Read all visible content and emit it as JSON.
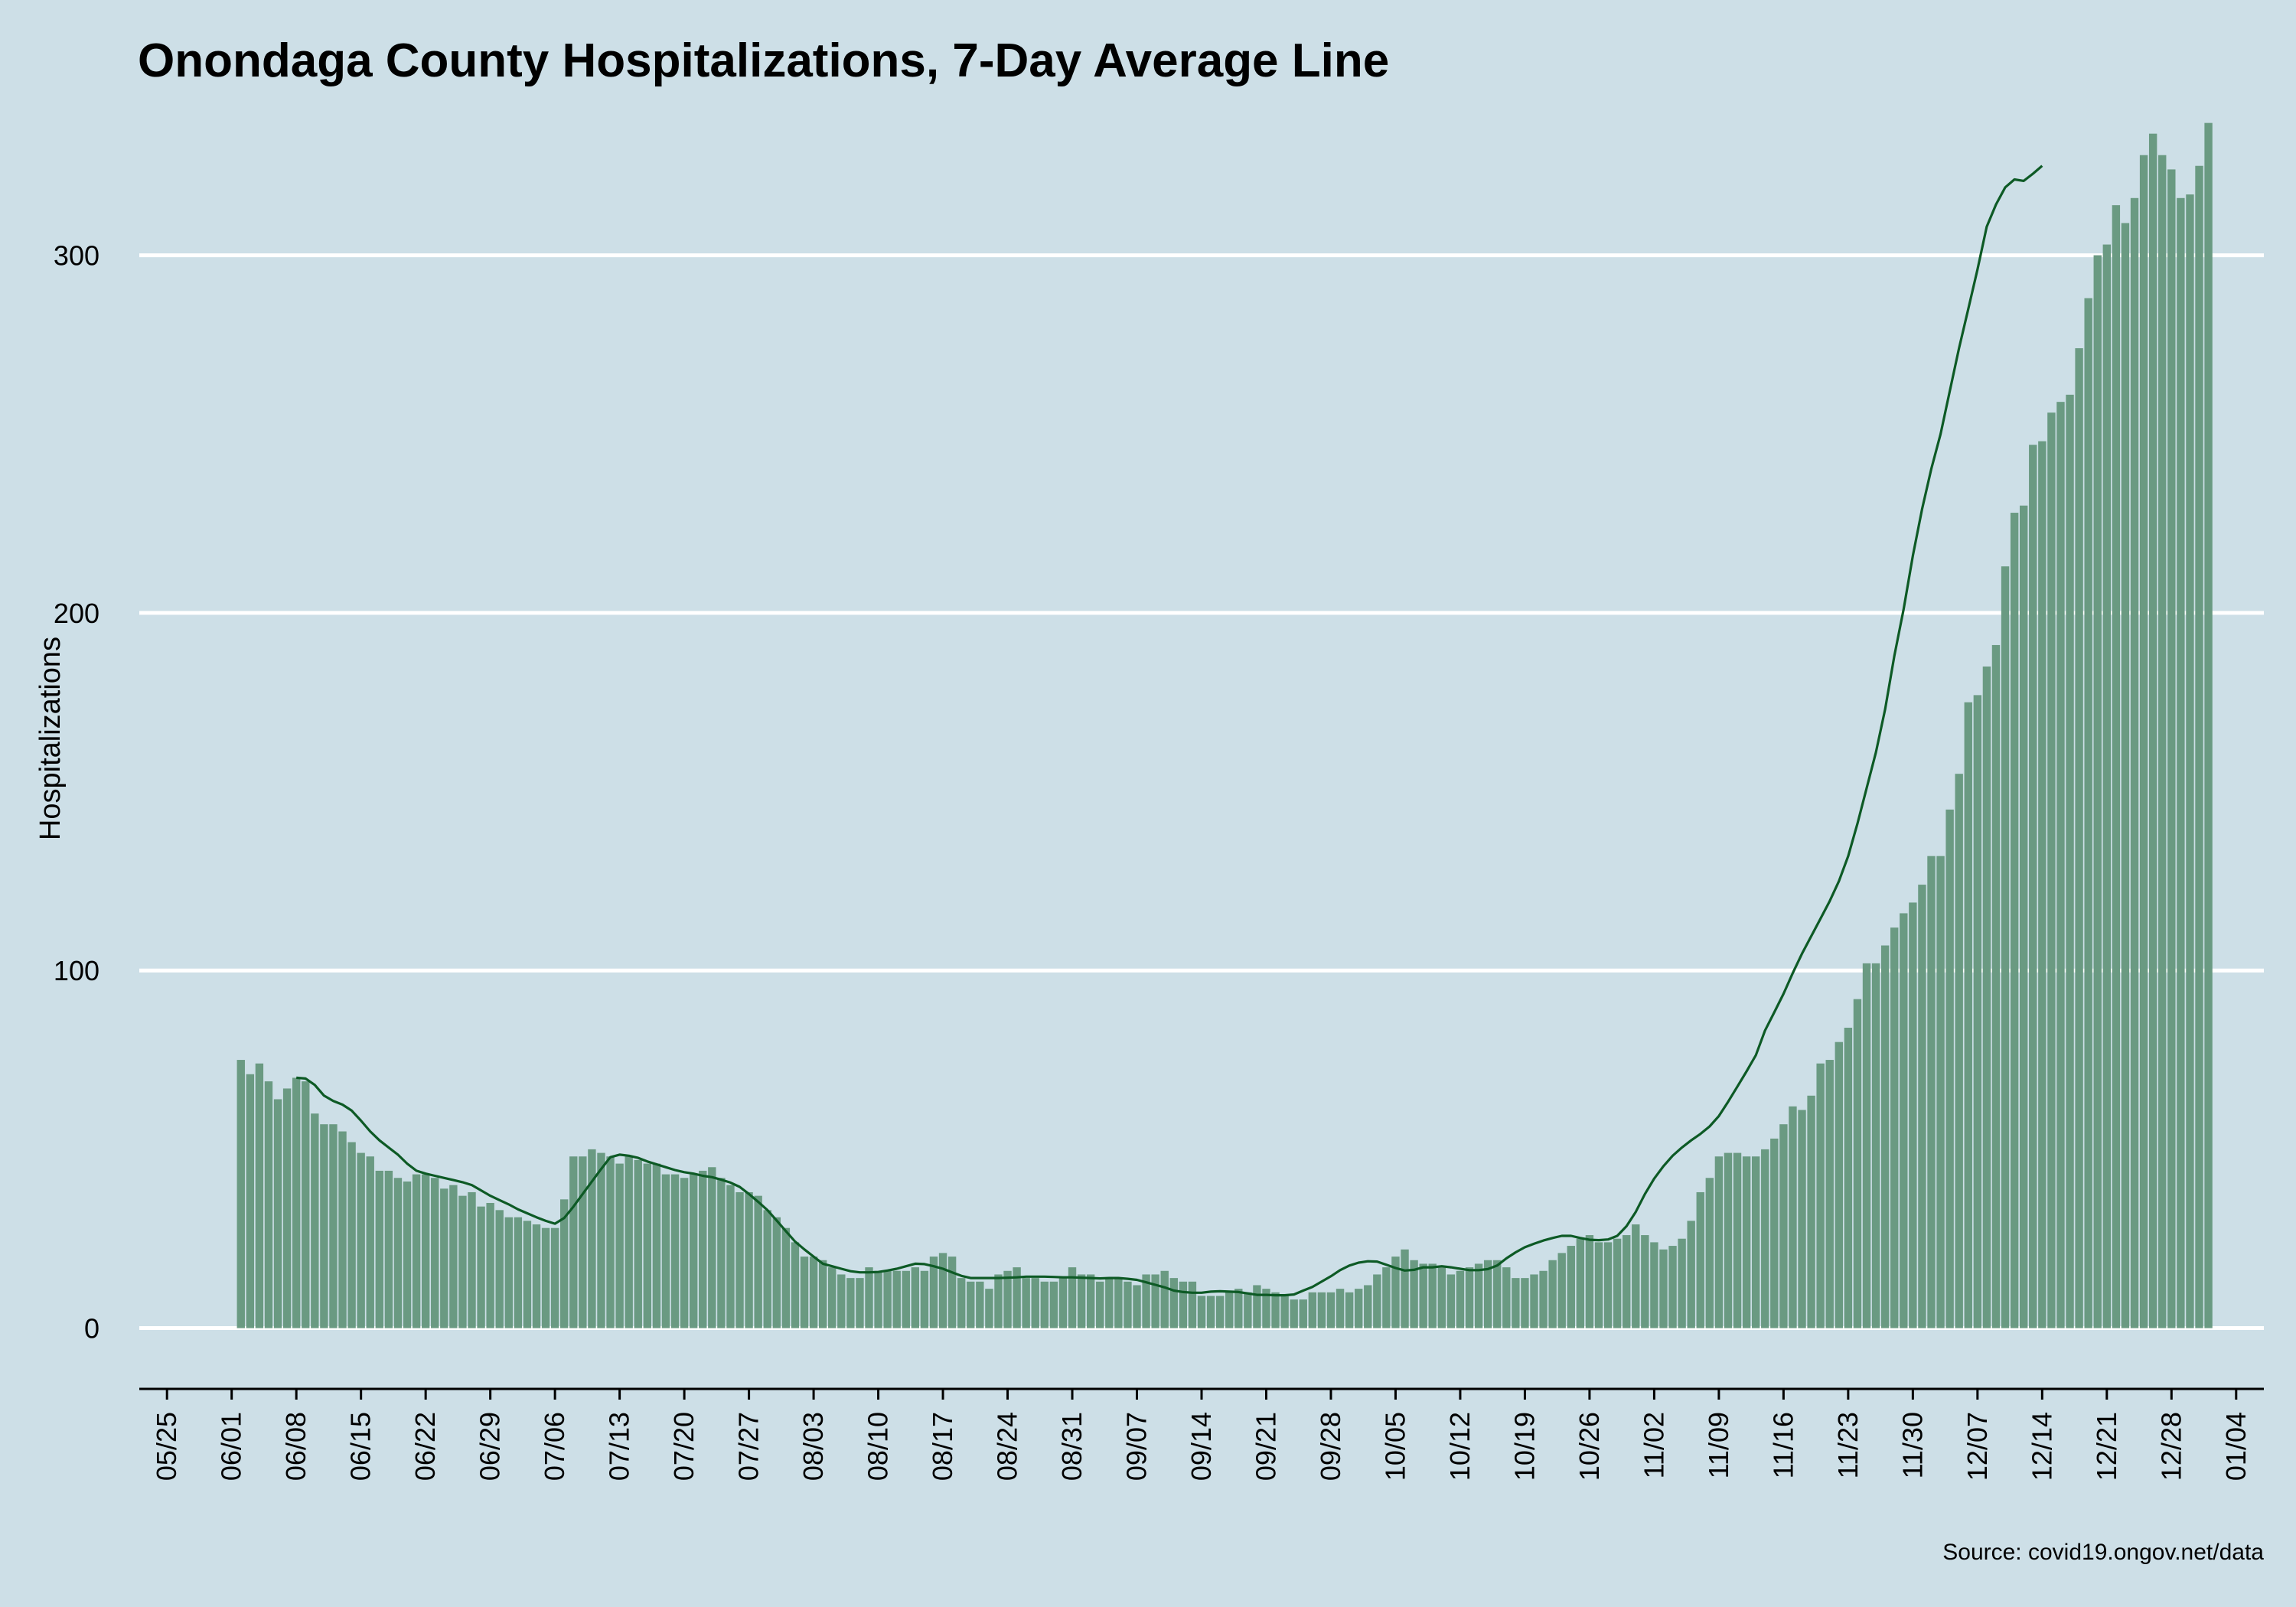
{
  "title": "Onondaga County Hospitalizations, 7-Day Average Line",
  "source": "Source: covid19.ongov.net/data",
  "colors": {
    "background": "#cddfe7",
    "bar": "#6a9a82",
    "line": "#0d5a25",
    "gridline": "#ffffff",
    "axis": "#000000"
  },
  "chart_data": {
    "type": "bar",
    "ylabel": "Hospitalizations",
    "xlabel": "",
    "ylim": [
      -17,
      335
    ],
    "yticks": [
      0,
      100,
      200,
      300
    ],
    "grid": "horizontal",
    "xlim": [
      "05/22",
      "01/07"
    ],
    "xticks": [
      "05/25",
      "06/01",
      "06/08",
      "06/15",
      "06/22",
      "06/29",
      "07/06",
      "07/13",
      "07/20",
      "07/27",
      "08/03",
      "08/10",
      "08/17",
      "08/24",
      "08/31",
      "09/07",
      "09/14",
      "09/21",
      "09/28",
      "10/05",
      "10/12",
      "10/19",
      "10/26",
      "11/02",
      "11/09",
      "11/16",
      "11/23",
      "11/30",
      "12/07",
      "12/14",
      "12/21",
      "12/28",
      "01/04"
    ],
    "x_start": "06/02",
    "x_end": "12/29",
    "values": [
      75,
      71,
      74,
      69,
      64,
      67,
      70,
      69,
      60,
      57,
      57,
      55,
      52,
      49,
      48,
      44,
      44,
      42,
      41,
      43,
      43,
      42,
      39,
      40,
      37,
      38,
      34,
      35,
      33,
      31,
      31,
      30,
      29,
      28,
      28,
      36,
      48,
      48,
      50,
      49,
      48,
      46,
      48,
      47,
      46,
      46,
      43,
      43,
      42,
      43,
      44,
      45,
      42,
      40,
      38,
      38,
      37,
      33,
      31,
      28,
      24,
      20,
      20,
      19,
      17,
      15,
      14,
      14,
      17,
      16,
      16,
      16,
      16,
      17,
      16,
      20,
      21,
      20,
      14,
      13,
      13,
      11,
      15,
      16,
      17,
      14,
      14,
      13,
      13,
      14,
      17,
      15,
      15,
      13,
      14,
      14,
      13,
      12,
      15,
      15,
      16,
      14,
      13,
      13,
      9,
      9,
      9,
      10,
      11,
      10,
      12,
      11,
      10,
      9,
      8,
      8,
      10,
      10,
      10,
      11,
      10,
      11,
      12,
      15,
      17,
      20,
      22,
      19,
      18,
      18,
      17,
      15,
      16,
      17,
      18,
      19,
      19,
      17,
      14,
      14,
      15,
      16,
      19,
      21,
      23,
      25,
      26,
      24,
      24,
      25,
      26,
      29,
      26,
      24,
      22,
      23,
      25,
      30,
      38,
      42,
      48,
      49,
      49,
      48,
      48,
      50,
      53,
      57,
      62,
      61,
      65,
      74,
      75,
      80,
      84,
      92,
      102,
      102,
      107,
      112,
      116,
      119,
      124,
      132,
      132,
      145,
      155,
      175,
      177,
      185,
      191,
      213,
      228,
      230,
      247,
      248,
      256,
      259,
      261,
      274,
      288,
      300,
      303,
      314,
      309,
      316,
      328,
      334,
      328,
      324,
      316,
      317,
      325,
      337
    ],
    "avg_start": "06/08",
    "avg_values": [
      70,
      69.8,
      68,
      65,
      63.5,
      62.5,
      60.8,
      58,
      55,
      52.5,
      50.5,
      48.5,
      46,
      44,
      43.2,
      42.6,
      42,
      41.4,
      40.8,
      40,
      38.5,
      37,
      35.8,
      34.6,
      33.2,
      32.1,
      31,
      30,
      29.2,
      30.8,
      34,
      37.5,
      41,
      44.5,
      47.8,
      48.5,
      48.2,
      47.6,
      46.6,
      45.8,
      45,
      44.2,
      43.6,
      43.2,
      42.6,
      42.2,
      41.5,
      40.7,
      39.5,
      37.5,
      35.3,
      33,
      30.1,
      27.1,
      24.2,
      22,
      20,
      18,
      17.3,
      16.6,
      15.9,
      15.6,
      15.6,
      15.7,
      16.1,
      16.6,
      17.3,
      18,
      17.9,
      17.3,
      16.6,
      15.6,
      14.6,
      14,
      14,
      14,
      14,
      14.1,
      14.2,
      14.4,
      14.4,
      14.4,
      14.3,
      14.2,
      14.2,
      14.1,
      14,
      13.9,
      14,
      14,
      13.8,
      13.5,
      12.8,
      12.1,
      11.4,
      10.5,
      10.1,
      9.9,
      9.9,
      10.2,
      10.3,
      10.2,
      10.1,
      9.7,
      9.3,
      9.3,
      9.2,
      9.2,
      9.4,
      10.5,
      11.5,
      13,
      14.5,
      16.2,
      17.5,
      18.3,
      18.7,
      18.6,
      17.7,
      16.8,
      16.1,
      16.3,
      17,
      17,
      17.3,
      17,
      16.6,
      16.2,
      16.2,
      16.5,
      17.5,
      19.5,
      21.2,
      22.6,
      23.6,
      24.5,
      25.2,
      25.8,
      25.8,
      25.2,
      24.7,
      24.6,
      24.8,
      25.8,
      28.5,
      32.5,
      37.5,
      41.8,
      45.3,
      48.2,
      50.5,
      52.5,
      54.3,
      56.4,
      59.3,
      63.3,
      67.5,
      71.8,
      76.3,
      83.2,
      88.3,
      93.5,
      99.3,
      104.7,
      109.6,
      114.5,
      119.4,
      125,
      132,
      141,
      151,
      161,
      173,
      188,
      201,
      216,
      229,
      240.3,
      250,
      262,
      274,
      285,
      296,
      308,
      314.2,
      319,
      321.2,
      320.8,
      322.8,
      325
    ]
  }
}
